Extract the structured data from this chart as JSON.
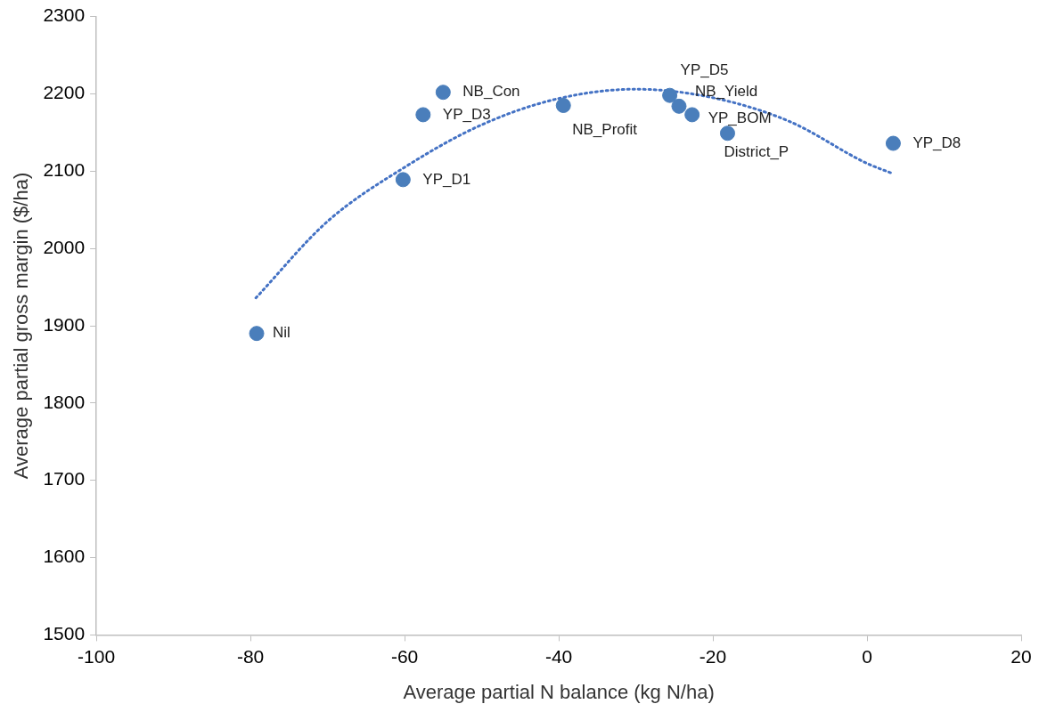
{
  "chart_data": {
    "type": "scatter",
    "xlabel": "Average partial N balance (kg N/ha)",
    "ylabel": "Average partial gross margin ($/ha)",
    "xlim": [
      -100,
      20
    ],
    "xticks": [
      -100,
      -80,
      -60,
      -40,
      -20,
      0,
      20
    ],
    "ylim": [
      1500,
      2300
    ],
    "yticks": [
      1500,
      1600,
      1700,
      1800,
      1900,
      2000,
      2100,
      2200,
      2300
    ],
    "grid": false,
    "legend": false,
    "marker": "circle",
    "series": [
      {
        "type": "scatter",
        "color": "#4a7ebb",
        "x": [
          -79.2,
          -60.2,
          -57.6,
          -55.0,
          -39.4,
          -25.6,
          -24.4,
          -22.7,
          -18.1,
          3.4
        ],
        "values": [
          1890,
          2089,
          2173,
          2202,
          2185,
          2198,
          2184,
          2173,
          2149,
          2136
        ]
      },
      {
        "type": "line",
        "color": "#4472c4",
        "line_style": "dotted",
        "marker": "none",
        "x": [
          -79.3,
          -70,
          -60,
          -50,
          -40,
          -30,
          -20,
          -10,
          0,
          3.3
        ],
        "values": [
          1936,
          2035,
          2105,
          2160,
          2194,
          2206,
          2195,
          2164,
          2110,
          2097
        ]
      }
    ],
    "annotations": [
      {
        "text": "Nil",
        "x": -79.2,
        "y": 1890
      },
      {
        "text": "YP_D1",
        "x": -60.2,
        "y": 2089
      },
      {
        "text": "YP_D3",
        "x": -57.6,
        "y": 2173
      },
      {
        "text": "NB_Con",
        "x": -55.0,
        "y": 2202
      },
      {
        "text": "NB_Profit",
        "x": -39.4,
        "y": 2185
      },
      {
        "text": "YP_D5",
        "x": -25.6,
        "y": 2198
      },
      {
        "text": "NB_Yield",
        "x": -24.4,
        "y": 2184
      },
      {
        "text": "YP_BOM",
        "x": -22.7,
        "y": 2173
      },
      {
        "text": "District_P",
        "x": -18.1,
        "y": 2149
      },
      {
        "text": "YP_D8",
        "x": 3.4,
        "y": 2136
      }
    ]
  }
}
